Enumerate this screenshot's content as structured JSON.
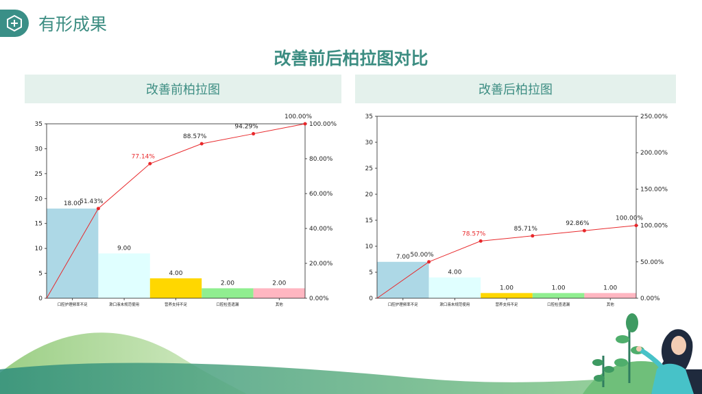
{
  "header": {
    "title": "有形成果",
    "badge_icon": "hexagon-plus-icon"
  },
  "main_title": "改善前后柏拉图对比",
  "colors": {
    "accent": "#3c8d82",
    "panel_bg": "#e4f1ec",
    "line": "#e8282b",
    "bars": [
      "#add8e6",
      "#e0ffff",
      "#ffd700",
      "#90ee90",
      "#ffb6c1"
    ]
  },
  "chart_data": [
    {
      "type": "bar",
      "title": "改善前柏拉图",
      "categories": [
        "口腔护理频率不足",
        "漱口液未规范使用",
        "营养支持不足",
        "口腔检查遗漏",
        "其他"
      ],
      "values": [
        18,
        9,
        4,
        2,
        2
      ],
      "value_labels": [
        "18.00",
        "9.00",
        "4.00",
        "2.00",
        "2.00"
      ],
      "cumulative_percent": [
        51.43,
        77.14,
        88.57,
        94.29,
        100.0
      ],
      "cumulative_labels": [
        "51.43%",
        "77.14%",
        "88.57%",
        "94.29%",
        "100.00%"
      ],
      "highlight_index": 1,
      "ylim": [
        0,
        35
      ],
      "yticks": [
        "0",
        "5",
        "10",
        "15",
        "20",
        "25",
        "30",
        "35"
      ],
      "y2lim": [
        0,
        100
      ],
      "y2ticks": [
        "0.00%",
        "20.00%",
        "40.00%",
        "60.00%",
        "80.00%",
        "100.00%"
      ],
      "grid": false
    },
    {
      "type": "bar",
      "title": "改善后柏拉图",
      "categories": [
        "口腔护理频率不足",
        "漱口液未规范使用",
        "营养支持不足",
        "口腔检查遗漏",
        "其他"
      ],
      "values": [
        7,
        4,
        1,
        1,
        1
      ],
      "value_labels": [
        "7.00",
        "4.00",
        "1.00",
        "1.00",
        "1.00"
      ],
      "cumulative_percent": [
        50.0,
        78.57,
        85.71,
        92.86,
        100.0
      ],
      "cumulative_labels": [
        "50.00%",
        "78.57%",
        "85.71%",
        "92.86%",
        "100.00%"
      ],
      "highlight_index": 1,
      "ylim": [
        0,
        35
      ],
      "yticks": [
        "0",
        "5",
        "10",
        "15",
        "20",
        "25",
        "30",
        "35"
      ],
      "y2lim": [
        0,
        250
      ],
      "y2ticks": [
        "0.00%",
        "50.00%",
        "100.00%",
        "150.00%",
        "200.00%",
        "250.00%"
      ],
      "grid": false
    }
  ]
}
